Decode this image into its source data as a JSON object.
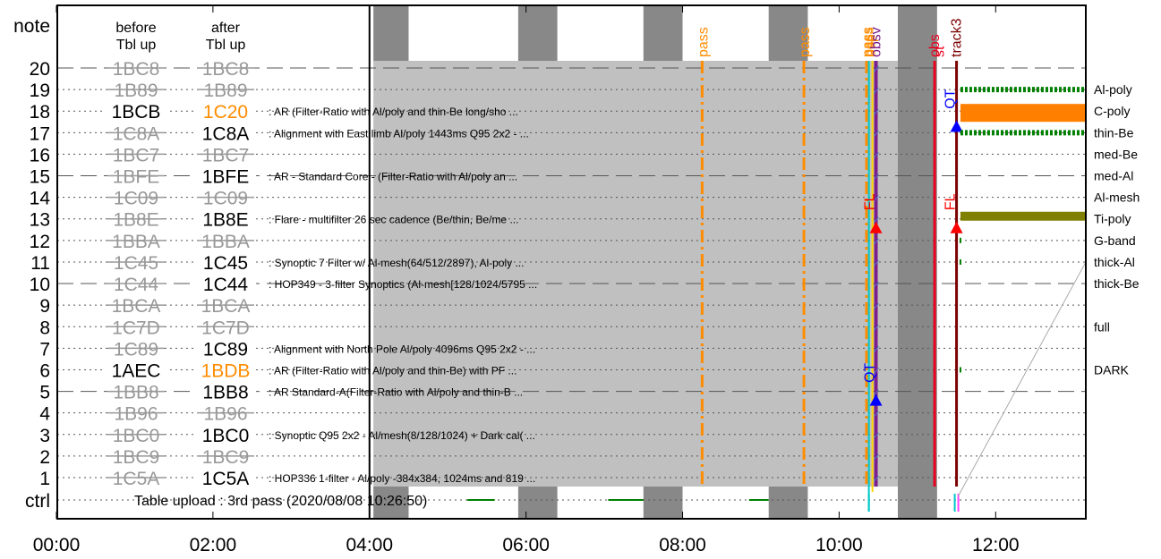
{
  "chart_data": {
    "type": "timeline",
    "y_axis_label": "note",
    "row_labels": [
      "20",
      "19",
      "18",
      "17",
      "16",
      "15",
      "14",
      "13",
      "12",
      "11",
      "10",
      "9",
      "8",
      "7",
      "6",
      "5",
      "4",
      "3",
      "2",
      "1"
    ],
    "ctrl_label": "ctrl",
    "x_ticks": [
      "00:00",
      "02:00",
      "04:00",
      "06:00",
      "08:00",
      "10:00",
      "12:00"
    ],
    "x_range_hours": [
      -0.4,
      12.1
    ],
    "header": {
      "before_line1": "before",
      "before_line2": "Tbl up",
      "after_line1": "after",
      "after_line2": "Tbl up"
    },
    "table_upload_text": "Table upload : 3rd pass (2020/08/08 10:26:50)",
    "rows": [
      {
        "row": 20,
        "before": "1BC8",
        "before_style": "struck",
        "after": "1BC8",
        "after_style": "struck",
        "desc": ""
      },
      {
        "row": 19,
        "before": "1B89",
        "before_style": "struck",
        "after": "1B89",
        "after_style": "struck",
        "desc": ""
      },
      {
        "row": 18,
        "before": "1BCB",
        "before_style": "normal",
        "after": "1C20",
        "after_style": "orange",
        "desc": ": AR (Filter-Ratio with Al/poly and thin-Be long/sho ..."
      },
      {
        "row": 17,
        "before": "1C8A",
        "before_style": "struck",
        "after": "1C8A",
        "after_style": "normal",
        "desc": ": Alignment with East limb Al/poly 1443ms Q95 2x2 - ..."
      },
      {
        "row": 16,
        "before": "1BC7",
        "before_style": "struck",
        "after": "1BC7",
        "after_style": "struck",
        "desc": ""
      },
      {
        "row": 15,
        "before": "1BFE",
        "before_style": "struck",
        "after": "1BFE",
        "after_style": "normal",
        "desc": ": AR - Standard Core - (Filter-Ratio with Al/poly an ..."
      },
      {
        "row": 14,
        "before": "1C09",
        "before_style": "struck",
        "after": "1C09",
        "after_style": "struck",
        "desc": ""
      },
      {
        "row": 13,
        "before": "1B8E",
        "before_style": "struck",
        "after": "1B8E",
        "after_style": "normal",
        "desc": ": Flare - multifilter 26 sec cadence (Be/thin, Be/me ..."
      },
      {
        "row": 12,
        "before": "1BBA",
        "before_style": "struck",
        "after": "1BBA",
        "after_style": "struck",
        "desc": ""
      },
      {
        "row": 11,
        "before": "1C45",
        "before_style": "struck",
        "after": "1C45",
        "after_style": "normal",
        "desc": ": Synoptic 7 Filter w/ Al-mesh(64/512/2897), Al-poly ..."
      },
      {
        "row": 10,
        "before": "1C44",
        "before_style": "struck",
        "after": "1C44",
        "after_style": "normal",
        "desc": ": HOP349 - 3-filter Synoptics (Al-mesh[128/1024/5795 ..."
      },
      {
        "row": 9,
        "before": "1BCA",
        "before_style": "struck",
        "after": "1BCA",
        "after_style": "struck",
        "desc": ""
      },
      {
        "row": 8,
        "before": "1C7D",
        "before_style": "struck",
        "after": "1C7D",
        "after_style": "struck",
        "desc": ""
      },
      {
        "row": 7,
        "before": "1C89",
        "before_style": "struck",
        "after": "1C89",
        "after_style": "normal",
        "desc": ": Alignment with North Pole Al/poly 4096ms Q95 2x2 - ..."
      },
      {
        "row": 6,
        "before": "1AEC",
        "before_style": "normal",
        "after": "1BDB",
        "after_style": "orange",
        "desc": ": AR (Filter-Ratio with Al/poly and thin-Be) with PF ..."
      },
      {
        "row": 5,
        "before": "1BB8",
        "before_style": "struck",
        "after": "1BB8",
        "after_style": "normal",
        "desc": ": AR Standard-A(Filter-Ratio with Al/poly and thin-B ..."
      },
      {
        "row": 4,
        "before": "1B96",
        "before_style": "struck",
        "after": "1B96",
        "after_style": "struck",
        "desc": ""
      },
      {
        "row": 3,
        "before": "1BC0",
        "before_style": "struck",
        "after": "1BC0",
        "after_style": "normal",
        "desc": ": Synoptic Q95 2x2 - Al/mesh(8/128/1024) + Dark cal( ..."
      },
      {
        "row": 2,
        "before": "1BC9",
        "before_style": "struck",
        "after": "1BC9",
        "after_style": "struck",
        "desc": ""
      },
      {
        "row": 1,
        "before": "1C5A",
        "before_style": "struck",
        "after": "1C5A",
        "after_style": "normal",
        "desc": ": HOP336 1-filter - Al/poly -384x384, 1024ms and 819 ..."
      }
    ],
    "dashed_rows": [
      20,
      15,
      10,
      5
    ],
    "night_intervals_hours": [
      [
        4.05,
        4.5
      ],
      [
        5.9,
        6.4
      ],
      [
        7.5,
        8.0
      ],
      [
        9.1,
        9.6
      ],
      [
        10.75,
        11.25
      ]
    ],
    "run_region_hours": [
      4.05,
      11.25
    ],
    "start_line_hour": 4.0,
    "ctrl_green_segments_hours": [
      [
        5.25,
        5.6
      ],
      [
        7.05,
        7.5
      ],
      [
        8.85,
        9.1
      ]
    ],
    "pass_markers": [
      {
        "hour": 8.25,
        "label": "pass"
      },
      {
        "hour": 9.55,
        "label": "pass"
      },
      {
        "hour": 10.35,
        "label": "pass"
      }
    ],
    "vertical_labels": [
      {
        "hour": 10.42,
        "label": "obsv",
        "color": "#7a1f8c"
      },
      {
        "hour": 10.38,
        "label": "bsp",
        "color": "#ff8c00"
      },
      {
        "hour": 11.22,
        "label": "obs",
        "color": "#e8001c"
      },
      {
        "hour": 11.3,
        "label": "st",
        "color": "#e8001c"
      },
      {
        "hour": 11.5,
        "label": "track3",
        "color": "#7b0000"
      }
    ],
    "events": [
      {
        "hour": 10.47,
        "row": 12.5,
        "marker": "up-triangle",
        "color": "#ff0000",
        "label": "FL"
      },
      {
        "hour": 10.47,
        "row": 4.5,
        "marker": "up-triangle",
        "color": "#0000ff",
        "label": "QT"
      },
      {
        "hour": 11.5,
        "row": 12.5,
        "marker": "up-triangle",
        "color": "#ff0000",
        "label": "FL"
      },
      {
        "hour": 11.5,
        "row": 17.2,
        "marker": "up-triangle",
        "color": "#0000ff",
        "label": "QT"
      }
    ],
    "filter_legend": [
      {
        "label": "Al-poly",
        "row": 19,
        "color": "#008000",
        "style": "dashed-thick"
      },
      {
        "label": "C-poly",
        "row": 18,
        "color": "#ff8000",
        "style": "solid-thick"
      },
      {
        "label": "thin-Be",
        "row": 17,
        "color": "#008000",
        "style": "dashed-thick"
      },
      {
        "label": "med-Be",
        "row": 16,
        "color": "",
        "style": "none"
      },
      {
        "label": "med-Al",
        "row": 15,
        "color": "",
        "style": "none"
      },
      {
        "label": "Al-mesh",
        "row": 14,
        "color": "",
        "style": "none"
      },
      {
        "label": "Ti-poly",
        "row": 13,
        "color": "#808000",
        "style": "solid-thick"
      },
      {
        "label": "G-band",
        "row": 12,
        "color": "#008000",
        "style": "tick"
      },
      {
        "label": "thick-Al",
        "row": 11,
        "color": "#008000",
        "style": "tick"
      },
      {
        "label": "thick-Be",
        "row": 10,
        "color": "",
        "style": "none"
      },
      {
        "label": "full",
        "row": 8,
        "color": "",
        "style": "none"
      },
      {
        "label": "DARK",
        "row": 6,
        "color": "#008000",
        "style": "tick"
      }
    ],
    "colors": {
      "run_fill": "#c0c0c0",
      "night_fill": "#888888",
      "pass": "#ff8c00",
      "teal": "#00c8c8",
      "purple": "#7a1f8c",
      "red": "#e8001c",
      "darkred": "#7b0000",
      "orange_text": "#ff8c00",
      "struck_text": "#999999"
    }
  }
}
